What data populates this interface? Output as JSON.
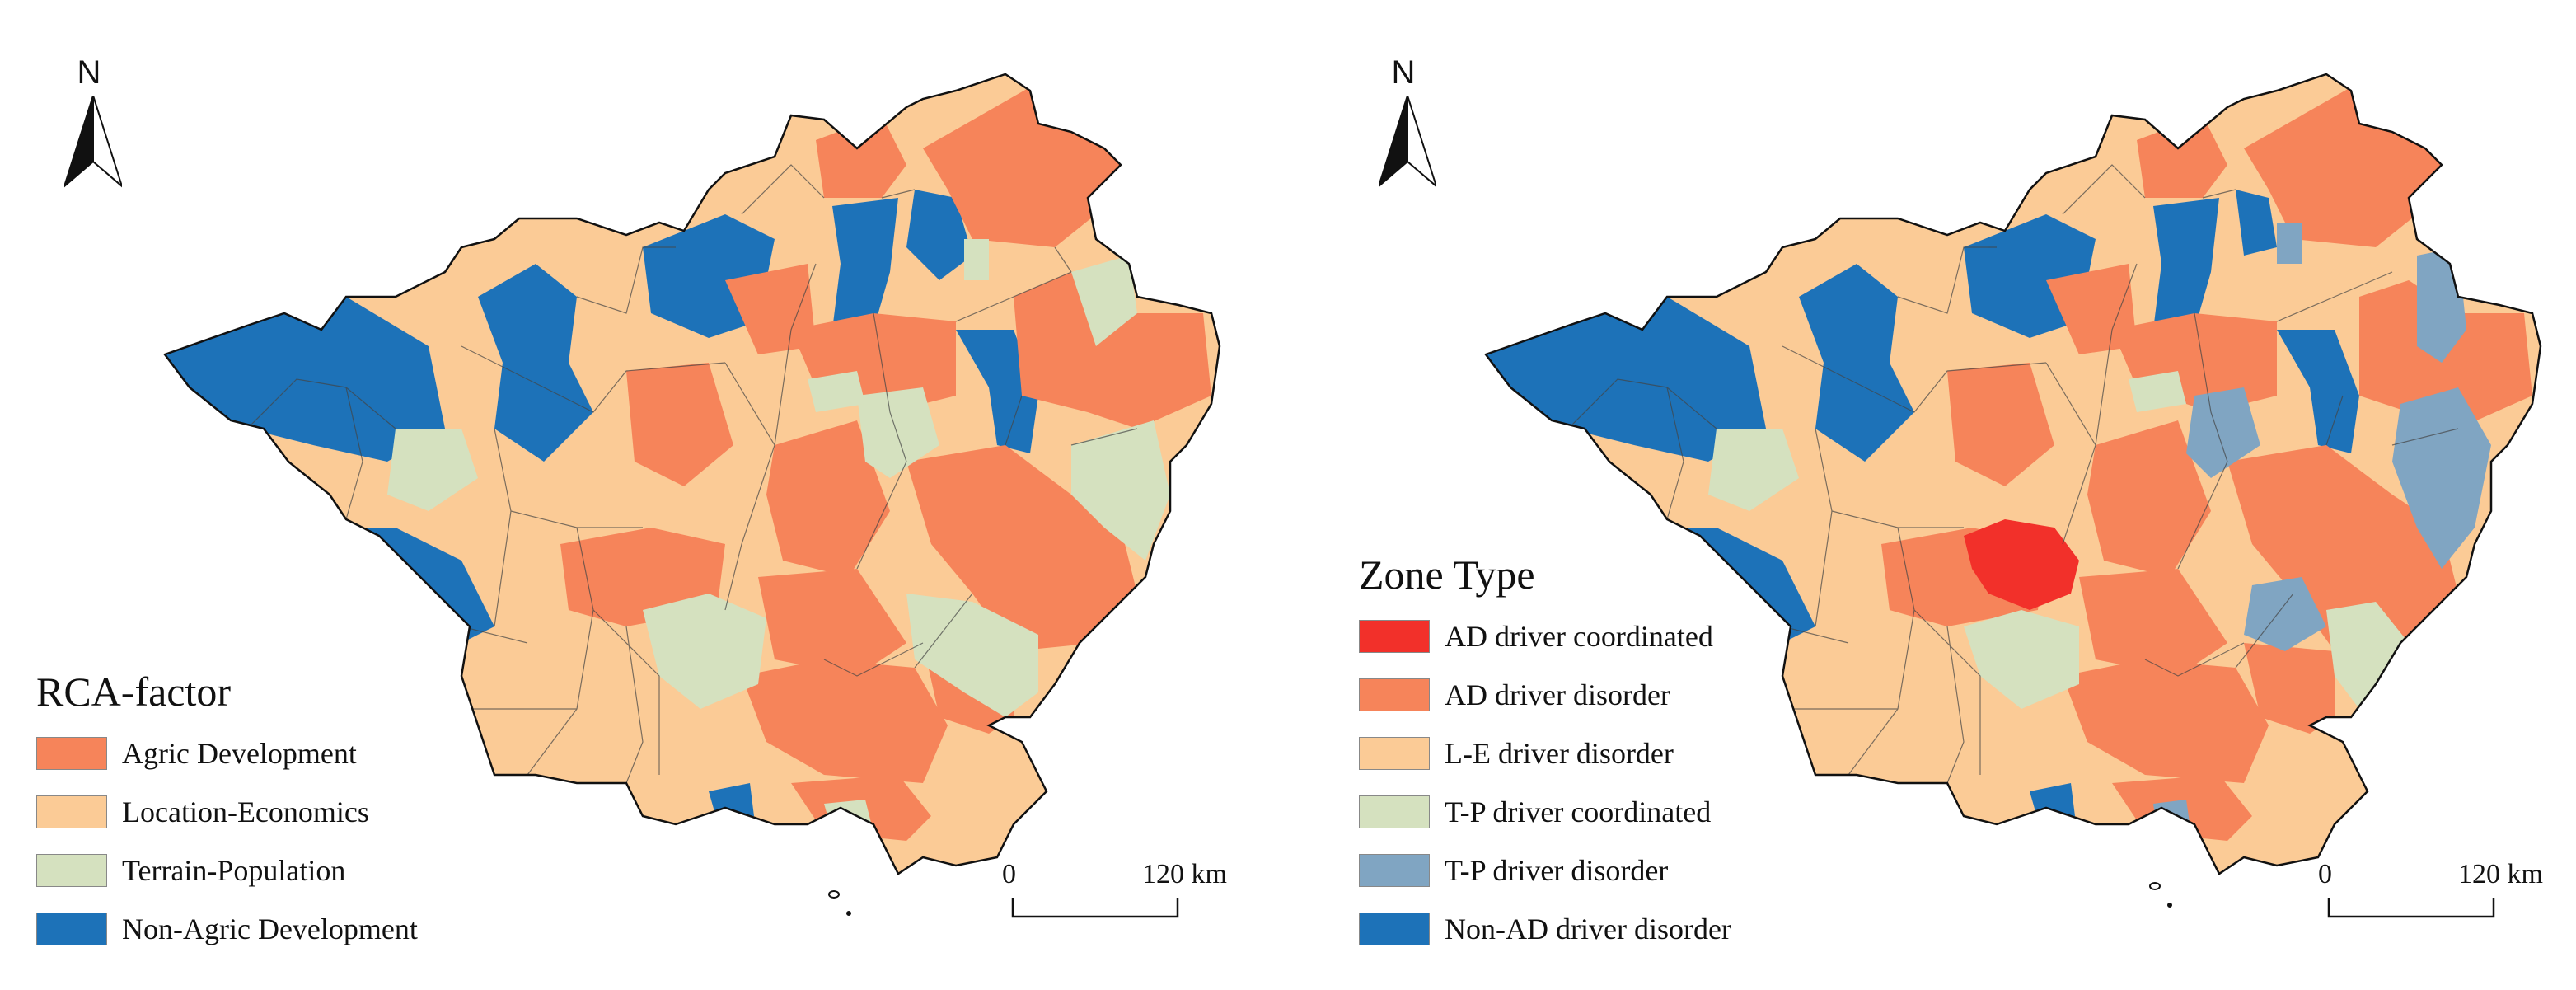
{
  "north_label": "N",
  "left_panel": {
    "legend_title": "RCA-factor",
    "legend": [
      {
        "label": "Agric Development",
        "color": "#f6845a"
      },
      {
        "label": "Location-Economics",
        "color": "#fbcb96"
      },
      {
        "label": "Terrain-Population",
        "color": "#d5e1bf"
      },
      {
        "label": "Non-Agric Development",
        "color": "#1d72b8"
      }
    ],
    "scale": {
      "zero": "0",
      "max": "120 km"
    }
  },
  "right_panel": {
    "legend_title": "Zone Type",
    "legend": [
      {
        "label": "AD driver coordinated",
        "color": "#f2302a"
      },
      {
        "label": "AD driver disorder",
        "color": "#f6845a"
      },
      {
        "label": "L-E driver disorder",
        "color": "#fbcb96"
      },
      {
        "label": "T-P driver coordinated",
        "color": "#d5e1bf"
      },
      {
        "label": "T-P driver disorder",
        "color": "#80a5c2"
      },
      {
        "label": "Non-AD driver disorder",
        "color": "#1d72b8"
      }
    ],
    "scale": {
      "zero": "0",
      "max": "120 km"
    }
  }
}
